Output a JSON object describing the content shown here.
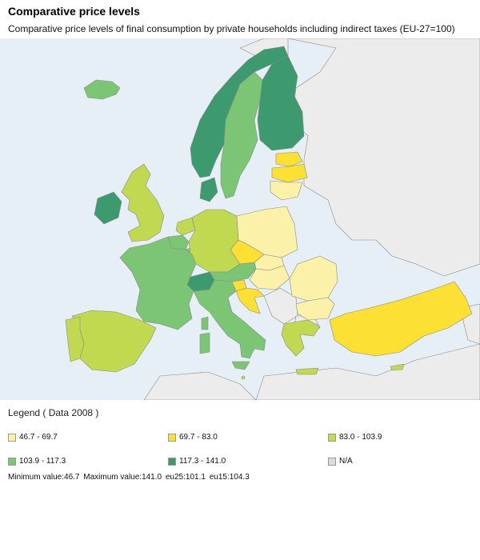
{
  "title": "Comparative price levels",
  "subtitle": "Comparative price levels of final consumption by private households including indirect taxes (EU-27=100)",
  "legend": {
    "title": "Legend ( Data 2008 )",
    "items": [
      {
        "label": "46.7 - 69.7",
        "color": "#fbf1a8"
      },
      {
        "label": "69.7 - 83.0",
        "color": "#fce033"
      },
      {
        "label": "83.0 - 103.9",
        "color": "#c1d851"
      },
      {
        "label": "103.9 - 117.3",
        "color": "#7cc574"
      },
      {
        "label": "117.3 - 141.0",
        "color": "#3c9a6e"
      },
      {
        "label": "N/A",
        "color": "#dcdcdc"
      }
    ]
  },
  "stats": {
    "min": "Minimum value:46.7",
    "max": "Maximum value:141.0",
    "eu25": "eu25:101.1",
    "eu15": "eu15:104.3"
  },
  "colors": {
    "sea": "#e6eef6",
    "non_eu_land": "#ececec",
    "border": "#8a8a8a"
  }
}
